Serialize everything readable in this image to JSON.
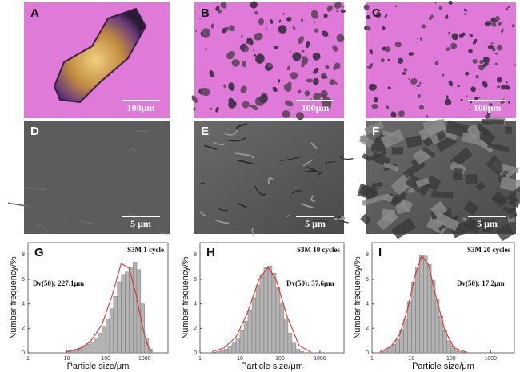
{
  "panels": [
    {
      "label": "A",
      "scale_bar": "100μm"
    },
    {
      "label": "B",
      "scale_bar": "100μm"
    },
    {
      "label": "C",
      "scale_bar": "100μm"
    },
    {
      "label": "D",
      "scale_bar": "5 μm"
    },
    {
      "label": "E",
      "scale_bar": "5 μm"
    },
    {
      "label": "F",
      "scale_bar": "5 μm"
    }
  ],
  "chart_data": [
    {
      "type": "histogram",
      "label": "G",
      "title": "S3M 1 cycle",
      "annotation": "Dv(50): 227.1μm",
      "xlabel": "Particle size/μm",
      "ylabel": "Number frequency/%",
      "log_x": true,
      "color": "#b4b4b4",
      "bins": [
        10,
        12.6,
        15.8,
        20,
        25.1,
        31.6,
        39.8,
        50.1,
        63.1,
        79.4,
        100,
        125.9,
        158.5,
        199.5,
        251.2,
        316.2,
        398.1,
        501.2,
        631,
        794.3,
        1000,
        1258.9,
        1584.9
      ],
      "values": [
        0.1,
        0.2,
        0.3,
        0.4,
        0.5,
        0.7,
        0.9,
        1.2,
        1.6,
        2.1,
        2.8,
        3.6,
        4.6,
        5.8,
        6.4,
        6.6,
        7.0,
        7.4,
        6.8,
        4.0,
        1.2,
        0.3
      ],
      "fit": {
        "color": "#e02020",
        "x": [
          10,
          20,
          40,
          80,
          150,
          250,
          400,
          600,
          900,
          1200,
          1500
        ],
        "values": [
          0.1,
          0.3,
          0.9,
          2.3,
          4.8,
          7.3,
          6.9,
          4.8,
          2.0,
          0.6,
          0.1
        ]
      },
      "xlim": [
        1,
        4000
      ],
      "ylim": [
        0,
        9
      ],
      "xticks": [
        1,
        10,
        100,
        1000
      ],
      "yticks": [
        0,
        2,
        4,
        6,
        8
      ]
    },
    {
      "type": "histogram",
      "label": "H",
      "title": "S3M 10 cycles",
      "annotation": "Dv(50): 37.6μm",
      "xlabel": "Particle size/μm",
      "ylabel": "Number frequency/%",
      "log_x": true,
      "color": "#b4b4b4",
      "bins": [
        2,
        2.5,
        3.2,
        4,
        5,
        6.3,
        7.9,
        10,
        12.6,
        15.8,
        20,
        25.1,
        31.6,
        39.8,
        50.1,
        63.1,
        79.4,
        100,
        125.9,
        158.5,
        199.5,
        251.2,
        316.2,
        398.1
      ],
      "values": [
        0.05,
        0.1,
        0.2,
        0.3,
        0.5,
        0.8,
        1.2,
        1.8,
        2.6,
        3.5,
        4.5,
        5.5,
        6.4,
        7.0,
        7.1,
        6.5,
        5.4,
        4.1,
        2.8,
        1.6,
        0.8,
        0.3,
        0.1
      ],
      "fit": {
        "color": "#e02020",
        "x": [
          2,
          4,
          8,
          15,
          30,
          50,
          80,
          150,
          300,
          600
        ],
        "values": [
          0.1,
          0.4,
          1.3,
          3.2,
          6.0,
          7.0,
          6.0,
          3.0,
          0.6,
          0.05
        ]
      },
      "xlim": [
        1,
        4000
      ],
      "ylim": [
        0,
        9
      ],
      "xticks": [
        1,
        10,
        100,
        1000
      ],
      "yticks": [
        0,
        2,
        4,
        6,
        8
      ]
    },
    {
      "type": "histogram",
      "label": "I",
      "title": "S3M 20 cycles",
      "annotation": "Dv(50): 17.2μm",
      "xlabel": "Particle size/μm",
      "ylabel": "Number frequency/%",
      "log_x": true,
      "color": "#b4b4b4",
      "bins": [
        1.6,
        2,
        2.5,
        3.2,
        4,
        5,
        6.3,
        7.9,
        10,
        12.6,
        15.8,
        20,
        25.1,
        31.6,
        39.8,
        50.1,
        63.1,
        79.4,
        100,
        125.9,
        158.5,
        199.5,
        251.2
      ],
      "values": [
        0.1,
        0.2,
        0.4,
        0.7,
        1.1,
        1.8,
        2.8,
        4.2,
        5.8,
        7.0,
        8.0,
        7.9,
        7.2,
        5.9,
        4.4,
        3.0,
        1.8,
        1.0,
        0.5,
        0.2,
        0.1,
        0.05
      ],
      "fit": {
        "color": "#e02020",
        "x": [
          1.6,
          3,
          5,
          8,
          12,
          18,
          27,
          40,
          70,
          120,
          250
        ],
        "values": [
          0.1,
          0.5,
          1.5,
          3.6,
          6.2,
          7.9,
          7.2,
          4.8,
          1.8,
          0.4,
          0.05
        ]
      },
      "xlim": [
        1,
        4000
      ],
      "ylim": [
        0,
        9
      ],
      "xticks": [
        1,
        10,
        100,
        1000
      ],
      "yticks": [
        0,
        2,
        4,
        6,
        8
      ]
    }
  ]
}
